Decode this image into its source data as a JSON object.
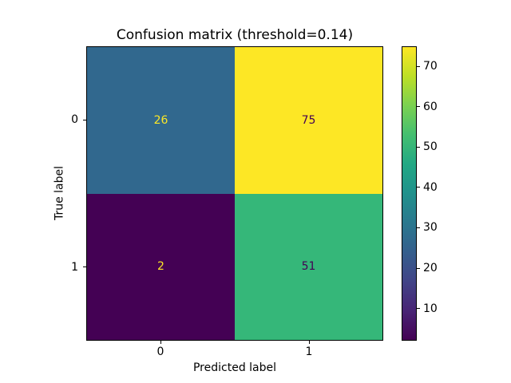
{
  "chart_data": {
    "type": "heatmap",
    "title": "Confusion matrix (threshold=0.14)",
    "xlabel": "Predicted label",
    "ylabel": "True label",
    "x_tick_labels": [
      "0",
      "1"
    ],
    "y_tick_labels": [
      "0",
      "1"
    ],
    "matrix": [
      [
        26,
        75
      ],
      [
        2,
        51
      ]
    ],
    "colormap": "viridis",
    "vmin": 2,
    "vmax": 75,
    "colorbar_ticks": [
      10,
      20,
      30,
      40,
      50,
      60,
      70
    ],
    "colorbar_position": "right",
    "cell_colors": [
      [
        "#31688e",
        "#fde725"
      ],
      [
        "#440154",
        "#35b779"
      ]
    ],
    "cell_text_colors": [
      [
        "#fde725",
        "#440154"
      ],
      [
        "#fde725",
        "#440154"
      ]
    ],
    "grid": false
  },
  "colors": {
    "background": "#ffffff",
    "axis": "#000000",
    "text": "#000000"
  }
}
